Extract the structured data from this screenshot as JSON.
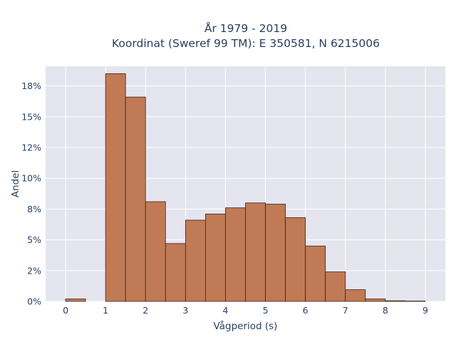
{
  "chart_data": {
    "type": "bar",
    "title_lines": [
      "År 1979 - 2019",
      "Koordinat (Sweref 99 TM): E 350581, N 6215006"
    ],
    "xlabel": "Vågperiod (s)",
    "ylabel": "Andel",
    "x_ticks": [
      "0",
      "1",
      "2",
      "3",
      "4",
      "5",
      "6",
      "7",
      "8",
      "9"
    ],
    "y_ticks": [
      {
        "value": 0,
        "label": "0%"
      },
      {
        "value": 2.5,
        "label": "2%"
      },
      {
        "value": 5,
        "label": "5%"
      },
      {
        "value": 7.5,
        "label": "8%"
      },
      {
        "value": 10,
        "label": "10%"
      },
      {
        "value": 12.5,
        "label": "12%"
      },
      {
        "value": 15,
        "label": "15%"
      },
      {
        "value": 17.5,
        "label": "18%"
      }
    ],
    "xlim": [
      -0.5,
      9.5
    ],
    "ylim": [
      0,
      19.1
    ],
    "bin_width": 0.5,
    "bins": [
      {
        "x0": 0.0,
        "value": 0.2
      },
      {
        "x0": 0.5,
        "value": 0.0
      },
      {
        "x0": 1.0,
        "value": 18.5
      },
      {
        "x0": 1.5,
        "value": 16.6
      },
      {
        "x0": 2.0,
        "value": 8.1
      },
      {
        "x0": 2.5,
        "value": 4.7
      },
      {
        "x0": 3.0,
        "value": 6.6
      },
      {
        "x0": 3.5,
        "value": 7.1
      },
      {
        "x0": 4.0,
        "value": 7.6
      },
      {
        "x0": 4.5,
        "value": 8.0
      },
      {
        "x0": 5.0,
        "value": 7.9
      },
      {
        "x0": 5.5,
        "value": 6.8
      },
      {
        "x0": 6.0,
        "value": 4.5
      },
      {
        "x0": 6.5,
        "value": 2.4
      },
      {
        "x0": 7.0,
        "value": 0.95
      },
      {
        "x0": 7.5,
        "value": 0.2
      },
      {
        "x0": 8.0,
        "value": 0.05
      },
      {
        "x0": 8.5,
        "value": 0.03
      }
    ],
    "bar_color": "#c07a55",
    "bar_edge_color": "#3b2418",
    "plot_background": "#e5e5ef",
    "grid": true
  }
}
